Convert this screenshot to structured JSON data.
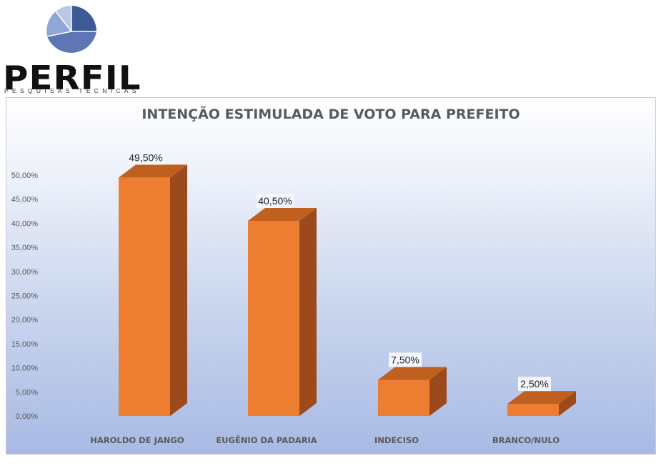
{
  "logo": {
    "name": "PERFIL",
    "tagline": "PESQUISAS TÉCNICAS"
  },
  "colors": {
    "bar_front": "#ED7D31",
    "bar_side": "#9C4A1C",
    "bar_top": "#C0601F",
    "label_bg": "#F3F6FC"
  },
  "chart_data": {
    "type": "bar",
    "title": "INTENÇÃO ESTIMULADA DE VOTO PARA PREFEITO",
    "categories": [
      "HAROLDO DE JANGO",
      "EUGÊNIO DA PADARIA",
      "INDECISO",
      "BRANCO/NULO"
    ],
    "values": [
      49.5,
      40.5,
      7.5,
      2.5
    ],
    "data_labels": [
      "49,50%",
      "40,50%",
      "7,50%",
      "2,50%"
    ],
    "yticks": [
      "0,00%",
      "5,00%",
      "10,00%",
      "15,00%",
      "20,00%",
      "25,00%",
      "30,00%",
      "35,00%",
      "40,00%",
      "45,00%",
      "50,00%"
    ],
    "ylim": [
      0,
      50
    ],
    "style": "3d-column",
    "grid": false
  }
}
